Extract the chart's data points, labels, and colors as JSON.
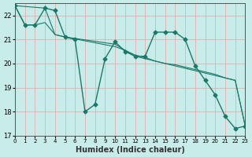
{
  "xlabel": "Humidex (Indice chaleur)",
  "xlim": [
    0,
    23
  ],
  "ylim": [
    17,
    22.5
  ],
  "yticks": [
    17,
    18,
    19,
    20,
    21,
    22
  ],
  "xticks": [
    0,
    1,
    2,
    3,
    4,
    5,
    6,
    7,
    8,
    9,
    10,
    11,
    12,
    13,
    14,
    15,
    16,
    17,
    18,
    19,
    20,
    21,
    22,
    23
  ],
  "bg_color": "#c8ecea",
  "grid_color": "#e8a0a0",
  "line_color": "#1a7a6a",
  "line1_x": [
    0,
    1,
    2,
    3,
    4,
    5,
    6,
    7,
    8,
    9,
    10,
    11,
    12,
    13,
    14,
    15,
    16,
    17,
    18,
    19,
    20,
    21,
    22,
    23
  ],
  "line1_y": [
    22.4,
    21.6,
    21.6,
    22.3,
    22.2,
    21.1,
    21.0,
    18.0,
    18.3,
    20.2,
    20.9,
    20.5,
    20.3,
    20.3,
    21.3,
    21.3,
    21.3,
    21.0,
    19.9,
    19.3,
    18.7,
    17.8,
    17.3,
    17.4
  ],
  "line2_x": [
    0,
    3,
    4,
    5,
    10,
    11,
    12,
    13,
    14,
    15,
    16,
    17,
    18,
    19,
    20,
    21,
    22,
    23
  ],
  "line2_y": [
    22.4,
    22.3,
    21.2,
    21.1,
    20.8,
    20.55,
    20.3,
    20.2,
    20.1,
    20.0,
    19.9,
    19.8,
    19.7,
    19.6,
    19.5,
    19.4,
    19.3,
    17.4
  ],
  "line3_x": [
    0,
    1,
    2,
    3,
    4,
    5,
    10,
    11,
    12,
    13,
    14,
    15,
    16,
    17,
    18,
    19,
    20,
    21,
    22,
    23
  ],
  "line3_y": [
    22.4,
    21.6,
    21.6,
    21.7,
    21.2,
    21.1,
    20.7,
    20.55,
    20.35,
    20.25,
    20.1,
    20.0,
    19.95,
    19.85,
    19.75,
    19.65,
    19.55,
    19.4,
    19.3,
    17.4
  ]
}
